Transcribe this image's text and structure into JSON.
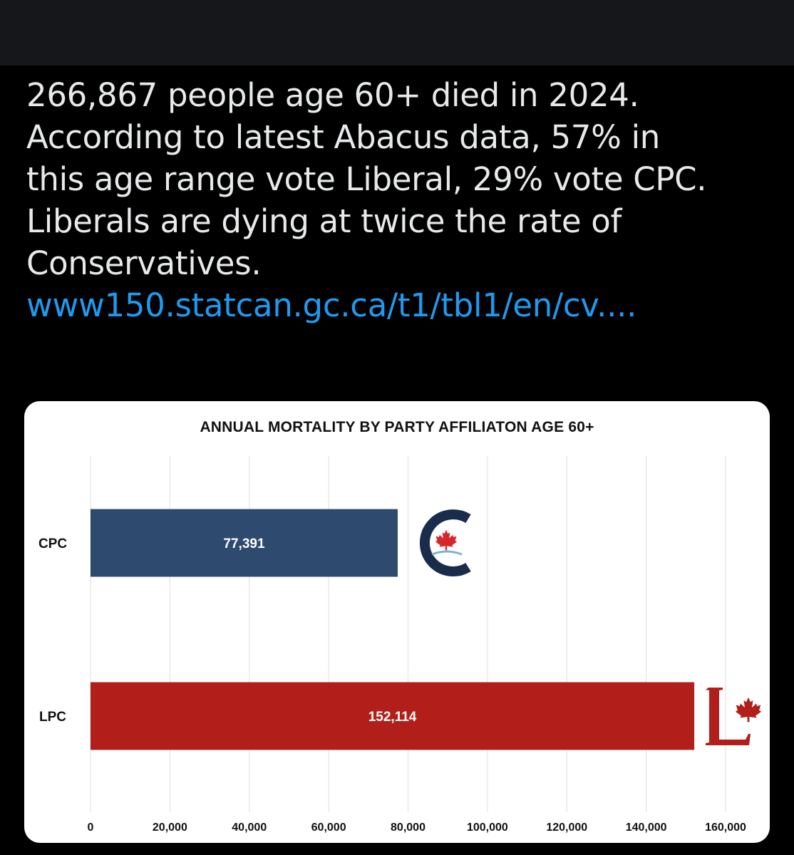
{
  "post": {
    "lines": [
      "266,867 people age 60+ died in 2024.",
      "According to latest Abacus data, 57% in",
      "this age range vote Liberal, 29% vote CPC.",
      "Liberals are dying at twice the rate of",
      "Conservatives."
    ],
    "link": "www150.statcan.gc.ca/t1/tbl1/en/cv...."
  },
  "colors": {
    "background": "#000000",
    "topbar": "#16171a",
    "text": "#e7e9ea",
    "link": "#1d9bf0",
    "cpc_bar": "#2e4a6f",
    "lpc_bar": "#b21f1a",
    "cpc_logo": "#1a2b4c",
    "leaf_red": "#d7262b",
    "gridline": "#e4e4e4"
  },
  "chart_data": {
    "type": "bar",
    "orientation": "horizontal",
    "title": "ANNUAL MORTALITY BY PARTY AFFILIATON AGE 60+",
    "categories": [
      "CPC",
      "LPC"
    ],
    "values": [
      77391,
      152114
    ],
    "value_labels": [
      "77,391",
      "152,114"
    ],
    "xlim": [
      0,
      160000
    ],
    "x_ticks": [
      0,
      20000,
      40000,
      60000,
      80000,
      100000,
      120000,
      140000,
      160000
    ],
    "x_tick_labels": [
      "0",
      "20,000",
      "40,000",
      "60,000",
      "80,000",
      "100,000",
      "120,000",
      "140,000",
      "160,000"
    ],
    "grid": true,
    "xlabel": "",
    "ylabel": "",
    "legend": "none",
    "logos": [
      "cpc-logo-icon",
      "lpc-logo-icon"
    ]
  }
}
